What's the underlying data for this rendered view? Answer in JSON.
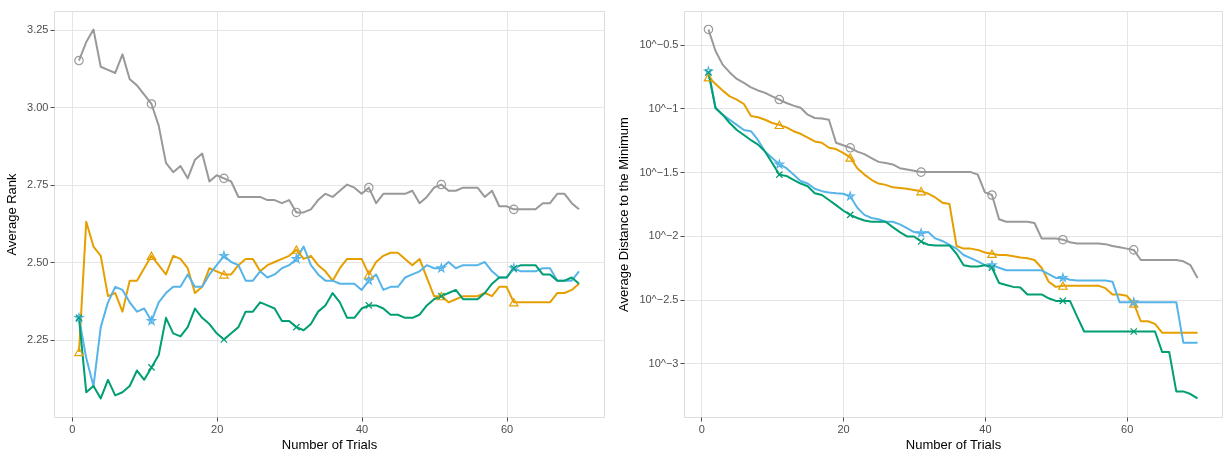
{
  "chart_data": [
    {
      "type": "line",
      "xlabel": "Number of Trials",
      "ylabel": "Average Rank",
      "grid": true,
      "x": [
        1,
        2,
        3,
        4,
        5,
        6,
        7,
        8,
        9,
        10,
        11,
        12,
        13,
        14,
        15,
        16,
        17,
        18,
        19,
        20,
        21,
        22,
        23,
        24,
        25,
        26,
        27,
        28,
        29,
        30,
        31,
        32,
        33,
        34,
        35,
        36,
        37,
        38,
        39,
        40,
        41,
        42,
        43,
        44,
        45,
        46,
        47,
        48,
        49,
        50,
        51,
        52,
        53,
        54,
        55,
        56,
        57,
        58,
        59,
        60,
        61,
        62,
        63,
        64,
        65,
        66,
        67,
        68,
        69,
        70
      ],
      "xlim": [
        -2.45,
        73.45
      ],
      "xticks": [
        0,
        20,
        40,
        60
      ],
      "ylim": [
        2.0,
        3.31
      ],
      "yticks": [
        {
          "value": 2.25,
          "label": "2.25"
        },
        {
          "value": 2.5,
          "label": "2.50"
        },
        {
          "value": 2.75,
          "label": "2.75"
        },
        {
          "value": 3.0,
          "label": "3.00"
        },
        {
          "value": 3.25,
          "label": "3.25"
        }
      ],
      "series": [
        {
          "color": "#999999",
          "values": [
            3.15,
            3.21,
            3.25,
            3.13,
            3.12,
            3.11,
            3.17,
            3.09,
            3.07,
            3.04,
            3.01,
            2.94,
            2.82,
            2.79,
            2.81,
            2.77,
            2.83,
            2.85,
            2.76,
            2.78,
            2.77,
            2.76,
            2.71,
            2.71,
            2.71,
            2.71,
            2.7,
            2.7,
            2.69,
            2.7,
            2.66,
            2.66,
            2.67,
            2.7,
            2.72,
            2.71,
            2.73,
            2.75,
            2.74,
            2.72,
            2.74,
            2.69,
            2.72,
            2.72,
            2.72,
            2.72,
            2.73,
            2.69,
            2.71,
            2.74,
            2.75,
            2.73,
            2.73,
            2.74,
            2.74,
            2.74,
            2.71,
            2.73,
            2.68,
            2.68,
            2.67,
            2.67,
            2.67,
            2.67,
            2.69,
            2.69,
            2.72,
            2.72,
            2.69,
            2.67
          ]
        },
        {
          "color": "#E69F00",
          "values": [
            2.21,
            2.63,
            2.55,
            2.52,
            2.39,
            2.4,
            2.34,
            2.44,
            2.44,
            2.48,
            2.52,
            2.49,
            2.46,
            2.52,
            2.51,
            2.48,
            2.4,
            2.42,
            2.48,
            2.47,
            2.46,
            2.46,
            2.49,
            2.51,
            2.51,
            2.47,
            2.49,
            2.5,
            2.51,
            2.52,
            2.54,
            2.51,
            2.52,
            2.49,
            2.47,
            2.44,
            2.48,
            2.51,
            2.51,
            2.51,
            2.46,
            2.5,
            2.52,
            2.53,
            2.53,
            2.51,
            2.49,
            2.51,
            2.45,
            2.39,
            2.39,
            2.37,
            2.38,
            2.39,
            2.39,
            2.39,
            2.4,
            2.39,
            2.42,
            2.42,
            2.37,
            2.37,
            2.37,
            2.37,
            2.37,
            2.37,
            2.4,
            2.4,
            2.41,
            2.43
          ]
        },
        {
          "color": "#56B4E9",
          "values": [
            2.32,
            2.19,
            2.1,
            2.29,
            2.37,
            2.42,
            2.41,
            2.37,
            2.34,
            2.35,
            2.31,
            2.37,
            2.4,
            2.42,
            2.42,
            2.46,
            2.42,
            2.42,
            2.46,
            2.49,
            2.52,
            2.5,
            2.49,
            2.44,
            2.44,
            2.47,
            2.45,
            2.46,
            2.48,
            2.49,
            2.51,
            2.55,
            2.49,
            2.46,
            2.44,
            2.44,
            2.43,
            2.43,
            2.43,
            2.41,
            2.44,
            2.46,
            2.41,
            2.42,
            2.42,
            2.45,
            2.46,
            2.47,
            2.49,
            2.48,
            2.48,
            2.5,
            2.48,
            2.49,
            2.49,
            2.49,
            2.5,
            2.47,
            2.45,
            2.45,
            2.48,
            2.47,
            2.47,
            2.47,
            2.48,
            2.48,
            2.44,
            2.44,
            2.44,
            2.47
          ]
        },
        {
          "color": "#009E73",
          "values": [
            2.32,
            2.08,
            2.1,
            2.06,
            2.12,
            2.07,
            2.08,
            2.1,
            2.15,
            2.12,
            2.16,
            2.2,
            2.32,
            2.27,
            2.26,
            2.29,
            2.35,
            2.32,
            2.3,
            2.27,
            2.25,
            2.27,
            2.29,
            2.34,
            2.34,
            2.37,
            2.36,
            2.35,
            2.31,
            2.31,
            2.29,
            2.28,
            2.3,
            2.34,
            2.36,
            2.4,
            2.37,
            2.32,
            2.32,
            2.35,
            2.36,
            2.36,
            2.35,
            2.33,
            2.33,
            2.32,
            2.32,
            2.33,
            2.36,
            2.38,
            2.39,
            2.4,
            2.41,
            2.38,
            2.38,
            2.38,
            2.4,
            2.43,
            2.45,
            2.45,
            2.48,
            2.49,
            2.49,
            2.49,
            2.46,
            2.46,
            2.44,
            2.44,
            2.45,
            2.43
          ]
        },
        {
          "type": "scatter",
          "color": "#999999",
          "marker": "circle",
          "x": [
            1,
            11,
            21,
            31,
            41,
            51,
            61
          ],
          "values": [
            3.15,
            3.01,
            2.77,
            2.66,
            2.74,
            2.75,
            2.67
          ]
        },
        {
          "type": "scatter",
          "color": "#E69F00",
          "marker": "triangle",
          "x": [
            1,
            11,
            21,
            31,
            41,
            51,
            61
          ],
          "values": [
            2.21,
            2.52,
            2.46,
            2.54,
            2.46,
            2.39,
            2.37
          ]
        },
        {
          "type": "scatter",
          "color": "#56B4E9",
          "marker": "star",
          "x": [
            1,
            11,
            21,
            31,
            41,
            51,
            61
          ],
          "values": [
            2.32,
            2.31,
            2.52,
            2.51,
            2.44,
            2.48,
            2.48
          ]
        },
        {
          "type": "scatter",
          "color": "#009E73",
          "marker": "cross",
          "x": [
            1,
            11,
            21,
            31,
            41,
            51,
            61
          ],
          "values": [
            2.32,
            2.16,
            2.25,
            2.29,
            2.36,
            2.39,
            2.48
          ]
        }
      ]
    },
    {
      "type": "line",
      "xlabel": "Number of Trials",
      "ylabel": "Average Distance to the Minimum",
      "grid": true,
      "log": "y",
      "x": [
        1,
        2,
        3,
        4,
        5,
        6,
        7,
        8,
        9,
        10,
        11,
        12,
        13,
        14,
        15,
        16,
        17,
        18,
        19,
        20,
        21,
        22,
        23,
        24,
        25,
        26,
        27,
        28,
        29,
        30,
        31,
        32,
        33,
        34,
        35,
        36,
        37,
        38,
        39,
        40,
        41,
        42,
        43,
        44,
        45,
        46,
        47,
        48,
        49,
        50,
        51,
        52,
        53,
        54,
        55,
        56,
        57,
        58,
        59,
        60,
        61,
        62,
        63,
        64,
        65,
        66,
        67,
        68,
        69,
        70
      ],
      "xlim": [
        -2.45,
        73.45
      ],
      "xticks": [
        0,
        20,
        40,
        60
      ],
      "ylim": [
        0.00038,
        0.579
      ],
      "yticks": [
        {
          "value": 0.3162,
          "label": "10^−0.5"
        },
        {
          "value": 0.1,
          "label": "10^−1"
        },
        {
          "value": 0.03162,
          "label": "10^−1.5"
        },
        {
          "value": 0.01,
          "label": "10^−2"
        },
        {
          "value": 0.003162,
          "label": "10^−2.5"
        },
        {
          "value": 0.001,
          "label": "10^−3"
        }
      ],
      "series": [
        {
          "color": "#999999",
          "values": [
            0.415,
            0.281,
            0.22,
            0.191,
            0.17,
            0.158,
            0.146,
            0.138,
            0.132,
            0.124,
            0.117,
            0.11,
            0.105,
            0.101,
            0.0891,
            0.0839,
            0.0832,
            0.0813,
            0.0537,
            0.0513,
            0.049,
            0.0457,
            0.0437,
            0.0407,
            0.038,
            0.0372,
            0.0363,
            0.0339,
            0.0331,
            0.0324,
            0.0316,
            0.0316,
            0.0316,
            0.0316,
            0.0316,
            0.0316,
            0.0316,
            0.0316,
            0.0302,
            0.0219,
            0.0209,
            0.0135,
            0.0129,
            0.0129,
            0.0129,
            0.0129,
            0.0126,
            0.00955,
            0.00955,
            0.00955,
            0.00933,
            0.00891,
            0.00871,
            0.00871,
            0.00871,
            0.00871,
            0.00861,
            0.00832,
            0.00813,
            0.00794,
            0.00776,
            0.00646,
            0.00646,
            0.00646,
            0.00646,
            0.00646,
            0.00646,
            0.00631,
            0.00589,
            0.00468
          ]
        },
        {
          "color": "#E69F00",
          "values": [
            0.175,
            0.155,
            0.138,
            0.124,
            0.117,
            0.108,
            0.0871,
            0.0851,
            0.0813,
            0.0767,
            0.0741,
            0.0708,
            0.0661,
            0.0631,
            0.0589,
            0.055,
            0.0537,
            0.049,
            0.0479,
            0.0447,
            0.0412,
            0.0339,
            0.0302,
            0.0275,
            0.0257,
            0.0251,
            0.024,
            0.0237,
            0.0234,
            0.0229,
            0.0224,
            0.0214,
            0.02,
            0.0182,
            0.0178,
            0.00832,
            0.00794,
            0.00794,
            0.00776,
            0.00741,
            0.00724,
            0.00708,
            0.00708,
            0.00692,
            0.00676,
            0.00668,
            0.00646,
            0.00562,
            0.00437,
            0.00398,
            0.00407,
            0.00407,
            0.00407,
            0.00407,
            0.00407,
            0.00407,
            0.00389,
            0.00347,
            0.00347,
            0.00339,
            0.00295,
            0.00214,
            0.00214,
            0.00204,
            0.00174,
            0.00174,
            0.00174,
            0.00174,
            0.00174,
            0.00174
          ]
        },
        {
          "color": "#56B4E9",
          "values": [
            0.195,
            0.101,
            0.0891,
            0.0813,
            0.0741,
            0.0676,
            0.0661,
            0.0562,
            0.0457,
            0.0407,
            0.0363,
            0.0339,
            0.0302,
            0.0269,
            0.0257,
            0.0234,
            0.0224,
            0.0219,
            0.0216,
            0.0214,
            0.0204,
            0.0166,
            0.0146,
            0.0138,
            0.0135,
            0.0129,
            0.0129,
            0.0123,
            0.0115,
            0.0107,
            0.0105,
            0.0107,
            0.00955,
            0.00912,
            0.00851,
            0.00794,
            0.00708,
            0.00668,
            0.00631,
            0.00589,
            0.00589,
            0.00562,
            0.00537,
            0.00537,
            0.00537,
            0.00537,
            0.00537,
            0.00537,
            0.00501,
            0.00468,
            0.00468,
            0.00452,
            0.00447,
            0.00447,
            0.00447,
            0.00447,
            0.00447,
            0.00437,
            0.00302,
            0.00302,
            0.00302,
            0.00302,
            0.00302,
            0.00302,
            0.00302,
            0.00302,
            0.00302,
            0.00145,
            0.00145,
            0.00145
          ]
        },
        {
          "type": "scatter",
          "color": "#999999",
          "marker": "circle",
          "x": [
            1,
            11,
            21,
            31,
            41,
            51,
            61
          ],
          "values": [
            0.415,
            0.117,
            0.049,
            0.0316,
            0.0209,
            0.00933,
            0.00776
          ]
        },
        {
          "type": "scatter",
          "color": "#E69F00",
          "marker": "triangle",
          "x": [
            1,
            11,
            21,
            31,
            41,
            51,
            61
          ],
          "values": [
            0.175,
            0.0741,
            0.0412,
            0.0224,
            0.00724,
            0.00407,
            0.00295
          ]
        },
        {
          "type": "scatter",
          "color": "#56B4E9",
          "marker": "star",
          "x": [
            1,
            11,
            21,
            31,
            41,
            51,
            61
          ],
          "values": [
            0.195,
            0.0363,
            0.0204,
            0.0105,
            0.00589,
            0.00468,
            0.00302
          ]
        },
        {
          "type": "scatter",
          "color": "#009E73",
          "marker": "cross",
          "x": [
            1,
            11,
            21,
            31,
            41,
            51,
            61
          ],
          "values": [
            0.191,
            0.0302,
            0.0146,
            0.00902,
            0.00562,
            0.00309,
            0.00178
          ]
        },
        {
          "color": "#009E73",
          "values": [
            0.191,
            0.1,
            0.0891,
            0.0767,
            0.0676,
            0.0617,
            0.0562,
            0.0519,
            0.0457,
            0.0372,
            0.0302,
            0.0295,
            0.0275,
            0.0257,
            0.0245,
            0.0216,
            0.0209,
            0.0191,
            0.0174,
            0.0158,
            0.0146,
            0.0138,
            0.0132,
            0.0129,
            0.0129,
            0.0129,
            0.0117,
            0.0107,
            0.00989,
            0.00989,
            0.00902,
            0.00851,
            0.00841,
            0.00841,
            0.00841,
            0.00724,
            0.00589,
            0.00575,
            0.00575,
            0.00589,
            0.00562,
            0.00427,
            0.00412,
            0.00398,
            0.00394,
            0.00347,
            0.00347,
            0.00347,
            0.00324,
            0.00309,
            0.00309,
            0.00309,
            0.00234,
            0.00178,
            0.00178,
            0.00178,
            0.00178,
            0.00178,
            0.00178,
            0.00178,
            0.00178,
            0.00178,
            0.00178,
            0.00178,
            0.00123,
            0.00123,
            0.000603,
            0.000603,
            0.000575,
            0.000531
          ]
        }
      ]
    }
  ]
}
